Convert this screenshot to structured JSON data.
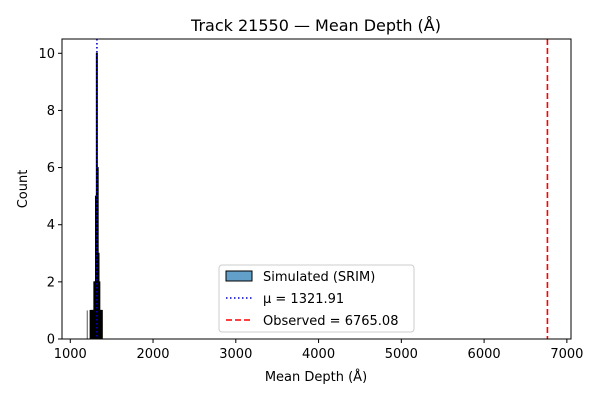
{
  "chart_data": {
    "type": "bar",
    "title": "Track 21550 — Mean Depth (Å)",
    "xlabel": "Mean Depth (Å)",
    "ylabel": "Count",
    "xlim": [
      900,
      7050
    ],
    "ylim": [
      0,
      10.5
    ],
    "xticks": [
      1000,
      2000,
      3000,
      4000,
      5000,
      6000,
      7000
    ],
    "yticks": [
      0,
      2,
      4,
      6,
      8,
      10
    ],
    "grid": false,
    "legend_position": "lower-center",
    "histogram": {
      "name": "Simulated (SRIM)",
      "color": "#1f77b4",
      "bins": [
        {
          "x0": 1240,
          "x1": 1250,
          "count": 1
        },
        {
          "x0": 1255,
          "x1": 1265,
          "count": 1
        },
        {
          "x0": 1265,
          "x1": 1275,
          "count": 1
        },
        {
          "x0": 1275,
          "x1": 1285,
          "count": 1
        },
        {
          "x0": 1285,
          "x1": 1295,
          "count": 2
        },
        {
          "x0": 1295,
          "x1": 1305,
          "count": 2
        },
        {
          "x0": 1305,
          "x1": 1315,
          "count": 5
        },
        {
          "x0": 1315,
          "x1": 1325,
          "count": 10
        },
        {
          "x0": 1325,
          "x1": 1335,
          "count": 6
        },
        {
          "x0": 1335,
          "x1": 1345,
          "count": 3
        },
        {
          "x0": 1345,
          "x1": 1355,
          "count": 2
        },
        {
          "x0": 1355,
          "x1": 1365,
          "count": 1
        },
        {
          "x0": 1365,
          "x1": 1375,
          "count": 1
        },
        {
          "x0": 1375,
          "x1": 1385,
          "count": 1
        }
      ]
    },
    "mean_line": {
      "label": "μ = 1321.91",
      "value": 1321.91,
      "color": "#0000cc",
      "style": "dotted"
    },
    "observed_line": {
      "label": "Observed = 6765.08",
      "value": 6765.08,
      "color": "#ff0000",
      "style": "dashed"
    },
    "extra_tick_line": {
      "value": 1205
    }
  }
}
